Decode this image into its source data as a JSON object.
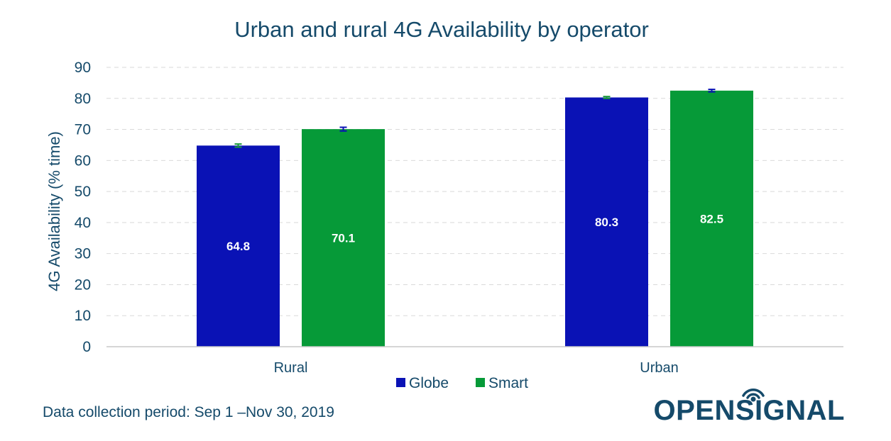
{
  "chart_data": {
    "type": "bar",
    "title": "Urban and rural 4G Availability by operator",
    "xlabel": "",
    "ylabel": "4G Availability (% time)",
    "ylim": [
      0,
      90
    ],
    "yticks": [
      0,
      10,
      20,
      30,
      40,
      50,
      60,
      70,
      80,
      90
    ],
    "categories": [
      "Rural",
      "Urban"
    ],
    "series": [
      {
        "name": "Globe",
        "color": "#0a12b5",
        "errorbar_color": "#1a9a3a",
        "values": [
          64.8,
          80.3
        ],
        "labels": [
          "64.8",
          "80.3"
        ],
        "error_low": [
          64.3,
          80.0
        ],
        "error_high": [
          65.3,
          80.6
        ]
      },
      {
        "name": "Smart",
        "color": "#069a38",
        "errorbar_color": "#0a12b5",
        "values": [
          70.1,
          82.5
        ],
        "labels": [
          "70.1",
          "82.5"
        ],
        "error_low": [
          69.5,
          82.1
        ],
        "error_high": [
          70.7,
          82.9
        ]
      }
    ],
    "grid": "horizontal-dashed",
    "legend_position": "bottom"
  },
  "footnote": "Data collection period: Sep 1 –Nov 30, 2019",
  "logo": {
    "before_i": "OPENS",
    "i": "I",
    "after_i": "GNAL",
    "color": "#154a6a",
    "icon": "signal-waves-icon"
  }
}
